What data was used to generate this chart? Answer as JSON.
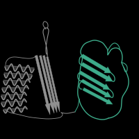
{
  "background_color": "#000000",
  "figsize": [
    2.0,
    2.0
  ],
  "dpi": 100,
  "gray_color": "#909090",
  "teal_color": "#3dab8a",
  "gray_dark": "#505050",
  "gray_light": "#b0b0b0"
}
